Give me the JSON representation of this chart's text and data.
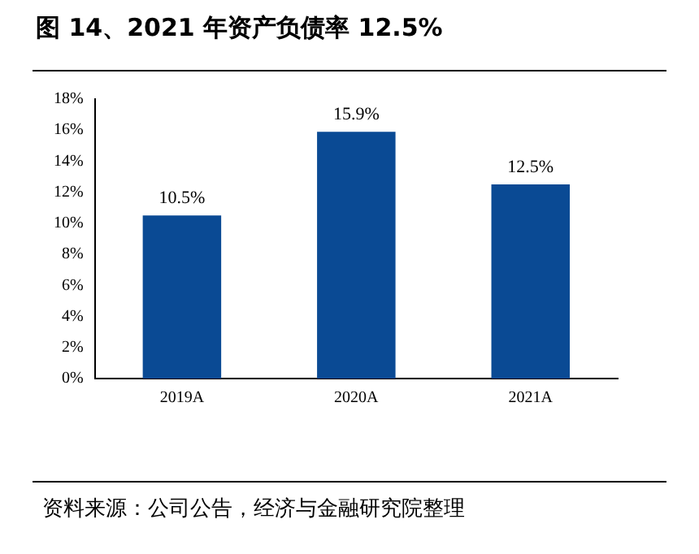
{
  "chart_data": {
    "type": "bar",
    "title": "图 14、2021 年资产负债率 12.5%",
    "categories": [
      "2019A",
      "2020A",
      "2021A"
    ],
    "values": [
      10.5,
      15.9,
      12.5
    ],
    "value_labels": [
      "10.5%",
      "15.9%",
      "12.5%"
    ],
    "color": "#0a4a94",
    "ylim": [
      0,
      18
    ],
    "yticks": [
      {
        "value": 0,
        "label": "0%"
      },
      {
        "value": 2,
        "label": "2%"
      },
      {
        "value": 4,
        "label": "4%"
      },
      {
        "value": 6,
        "label": "6%"
      },
      {
        "value": 8,
        "label": "8%"
      },
      {
        "value": 10,
        "label": "10%"
      },
      {
        "value": 12,
        "label": "12%"
      },
      {
        "value": 14,
        "label": "14%"
      },
      {
        "value": 16,
        "label": "16%"
      },
      {
        "value": 18,
        "label": "18%"
      }
    ],
    "grid": false,
    "legend": false,
    "annotations": [
      "资料来源：公司公告，经济与金融研究院整理"
    ]
  }
}
